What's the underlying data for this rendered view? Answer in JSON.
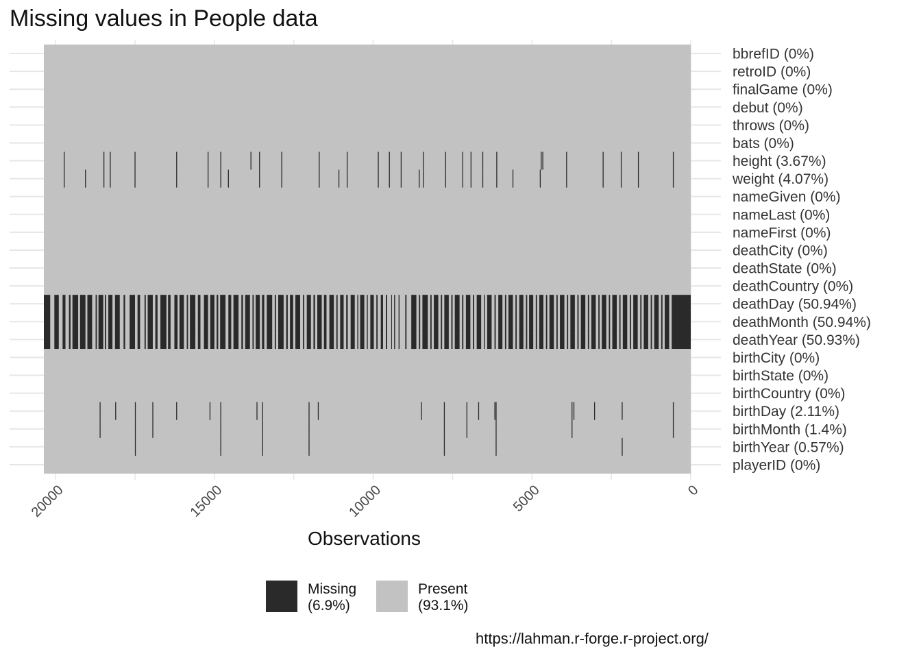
{
  "title": "Missing values in People data",
  "caption": "https://lahman.r-forge.r-project.org/",
  "colors": {
    "missing": "#2a2a2a",
    "present": "#c2c2c2",
    "grid": "#e6e6e6"
  },
  "chart_data": {
    "type": "heatmap",
    "title": "Missing values in People data",
    "xlabel": "",
    "ylabel": "",
    "x_reversed": true,
    "xlim": [
      20370,
      0
    ],
    "x_ticks": [
      20000,
      15000,
      10000,
      5000,
      0
    ],
    "grid": true,
    "legend": {
      "title": "Observations",
      "position": "bottom",
      "items": [
        {
          "label": "Missing",
          "pct": "(6.9%)",
          "color": "#2a2a2a"
        },
        {
          "label": "Present",
          "pct": "(93.1%)",
          "color": "#c2c2c2"
        }
      ]
    },
    "variables": [
      {
        "label": "bbrefID (0%)",
        "missing_obs": []
      },
      {
        "label": "retroID (0%)",
        "missing_obs": []
      },
      {
        "label": "finalGame (0%)",
        "missing_obs": []
      },
      {
        "label": "debut (0%)",
        "missing_obs": []
      },
      {
        "label": "throws (0%)",
        "missing_obs": []
      },
      {
        "label": "bats (0%)",
        "missing_obs": []
      },
      {
        "label": "height (3.67%)",
        "missing_obs": [
          19730,
          18480,
          18280,
          17500,
          16190,
          15200,
          14800,
          13850,
          13580,
          12880,
          11700,
          10820,
          9840,
          9490,
          9120,
          8420,
          7720,
          7180,
          6920,
          6550,
          6110,
          4710,
          4660,
          3910,
          2760,
          2190,
          1650,
          550
        ]
      },
      {
        "label": "weight (4.07%)",
        "missing_obs": [
          19730,
          19060,
          18480,
          18280,
          17500,
          16190,
          15200,
          14800,
          14560,
          13580,
          12880,
          11700,
          11080,
          10820,
          9840,
          9490,
          9120,
          8550,
          8420,
          7720,
          7180,
          6920,
          6550,
          6110,
          5600,
          4740,
          3910,
          2760,
          2190,
          1650,
          550
        ]
      },
      {
        "label": "nameGiven (0%)",
        "missing_obs": []
      },
      {
        "label": "nameLast (0%)",
        "missing_obs": []
      },
      {
        "label": "nameFirst (0%)",
        "missing_obs": []
      },
      {
        "label": "deathCity (0%)",
        "missing_obs": []
      },
      {
        "label": "deathState (0%)",
        "missing_obs": []
      },
      {
        "label": "deathCountry (0%)",
        "missing_obs": []
      },
      {
        "label": "deathDay (50.94%)",
        "band": "deathYear"
      },
      {
        "label": "deathMonth (50.94%)",
        "band": "deathYear"
      },
      {
        "label": "deathYear (50.93%)",
        "band": "deathYear"
      },
      {
        "label": "birthCity (0%)",
        "missing_obs": []
      },
      {
        "label": "birthState (0%)",
        "missing_obs": []
      },
      {
        "label": "birthCountry (0%)",
        "missing_obs": []
      },
      {
        "label": "birthDay (2.11%)",
        "missing_obs": [
          18600,
          18110,
          17490,
          16940,
          16190,
          15140,
          14800,
          13660,
          13480,
          12020,
          11730,
          8480,
          7760,
          7050,
          6680,
          6170,
          6130,
          3740,
          3680,
          3030,
          2160,
          550
        ]
      },
      {
        "label": "birthMonth (1.4%)",
        "missing_obs": [
          18600,
          17490,
          16940,
          14800,
          13480,
          12020,
          7760,
          7050,
          6130,
          3740,
          550
        ]
      },
      {
        "label": "birthYear (0.57%)",
        "missing_obs": [
          17490,
          14800,
          13480,
          12020,
          7760,
          6130,
          2160
        ]
      },
      {
        "label": "playerID (0%)",
        "missing_obs": []
      }
    ],
    "missing_segments": {
      "deathYear": [
        [
          20370,
          20170
        ],
        [
          20040,
          19900
        ],
        [
          19780,
          19690
        ],
        [
          19580,
          19530
        ],
        [
          19470,
          19290
        ],
        [
          19230,
          19060
        ],
        [
          19000,
          18850
        ],
        [
          18740,
          18700
        ],
        [
          18650,
          18500
        ],
        [
          18450,
          18410
        ],
        [
          18340,
          18210
        ],
        [
          18130,
          17980
        ],
        [
          17860,
          17810
        ],
        [
          17670,
          17500
        ],
        [
          17420,
          17340
        ],
        [
          17200,
          17160
        ],
        [
          17100,
          16940
        ],
        [
          16860,
          16790
        ],
        [
          16700,
          16510
        ],
        [
          16460,
          16380
        ],
        [
          16260,
          16160
        ],
        [
          16100,
          15960
        ],
        [
          15870,
          15830
        ],
        [
          15770,
          15600
        ],
        [
          15520,
          15440
        ],
        [
          15330,
          15200
        ],
        [
          15130,
          15000
        ],
        [
          14930,
          14880
        ],
        [
          14820,
          14650
        ],
        [
          14560,
          14470
        ],
        [
          14400,
          14240
        ],
        [
          14150,
          14100
        ],
        [
          14030,
          13880
        ],
        [
          13800,
          13760
        ],
        [
          13700,
          13570
        ],
        [
          13500,
          13430
        ],
        [
          13350,
          13180
        ],
        [
          13100,
          13060
        ],
        [
          12990,
          12820
        ],
        [
          12740,
          12690
        ],
        [
          12620,
          12520
        ],
        [
          12450,
          12300
        ],
        [
          12210,
          12170
        ],
        [
          12090,
          11960
        ],
        [
          11880,
          11830
        ],
        [
          11760,
          11620
        ],
        [
          11550,
          11470
        ],
        [
          11380,
          11240
        ],
        [
          11160,
          11120
        ],
        [
          11040,
          10930
        ],
        [
          10850,
          10800
        ],
        [
          10710,
          10580
        ],
        [
          10500,
          10470
        ],
        [
          10410,
          10280
        ],
        [
          10200,
          10170
        ],
        [
          10090,
          9980
        ],
        [
          9900,
          9860
        ],
        [
          9760,
          9690
        ],
        [
          9600,
          9560
        ],
        [
          9430,
          9410
        ],
        [
          9340,
          9310
        ],
        [
          9200,
          9170
        ],
        [
          8990,
          8950
        ],
        [
          8800,
          8640
        ],
        [
          8560,
          8520
        ],
        [
          8450,
          8280
        ],
        [
          8200,
          8160
        ],
        [
          8090,
          7950
        ],
        [
          7870,
          7830
        ],
        [
          7760,
          7620
        ],
        [
          7540,
          7500
        ],
        [
          7430,
          7280
        ],
        [
          7200,
          7160
        ],
        [
          7080,
          6940
        ],
        [
          6860,
          6820
        ],
        [
          6740,
          6600
        ],
        [
          6510,
          6480
        ],
        [
          6410,
          6270
        ],
        [
          6180,
          6140
        ],
        [
          6060,
          5930
        ],
        [
          5850,
          5810
        ],
        [
          5740,
          5600
        ],
        [
          5520,
          5480
        ],
        [
          5400,
          5270
        ],
        [
          5190,
          5150
        ],
        [
          5090,
          4960
        ],
        [
          4880,
          4840
        ],
        [
          4770,
          4640
        ],
        [
          4560,
          4520
        ],
        [
          4450,
          4310
        ],
        [
          4230,
          4190
        ],
        [
          4120,
          3980
        ],
        [
          3900,
          3860
        ],
        [
          3790,
          3650
        ],
        [
          3570,
          3530
        ],
        [
          3460,
          3320
        ],
        [
          3240,
          3200
        ],
        [
          3130,
          2990
        ],
        [
          2910,
          2870
        ],
        [
          2800,
          2660
        ],
        [
          2580,
          2540
        ],
        [
          2470,
          2330
        ],
        [
          2250,
          2210
        ],
        [
          2140,
          2000
        ],
        [
          1920,
          1880
        ],
        [
          1810,
          1670
        ],
        [
          1590,
          1550
        ],
        [
          1480,
          1340
        ],
        [
          1260,
          1220
        ],
        [
          1150,
          1010
        ],
        [
          930,
          890
        ],
        [
          820,
          680
        ],
        [
          600,
          0
        ]
      ]
    }
  }
}
